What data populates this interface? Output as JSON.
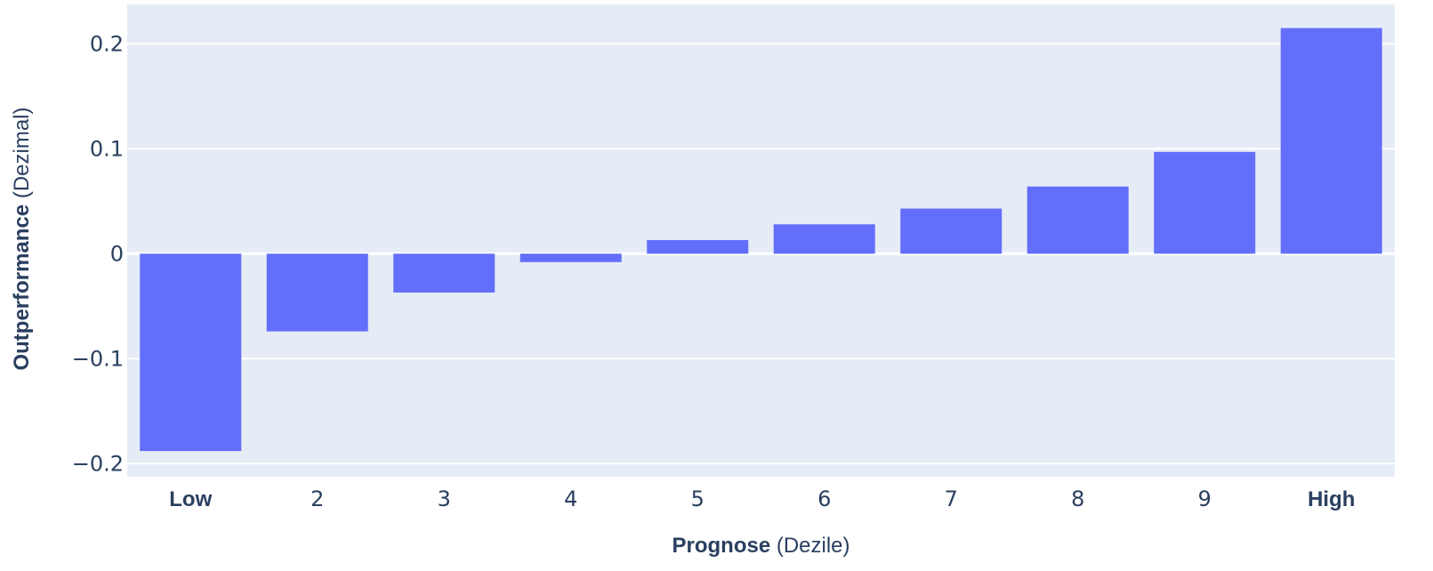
{
  "chart_data": {
    "type": "bar",
    "categories": [
      "Low",
      "2",
      "3",
      "4",
      "5",
      "6",
      "7",
      "8",
      "9",
      "High"
    ],
    "bold_categories": [
      "Low",
      "High"
    ],
    "values": [
      -0.188,
      -0.074,
      -0.037,
      -0.008,
      0.013,
      0.028,
      0.043,
      0.064,
      0.097,
      0.215
    ],
    "xlabel": {
      "bold": "Prognose",
      "normal": " (Dezile)"
    },
    "ylabel": {
      "bold": "Outperformance",
      "normal": " (Dezimal)"
    },
    "ylim": [
      -0.2125,
      0.2375
    ],
    "yticks": [
      {
        "value": 0.2,
        "label": "0.2"
      },
      {
        "value": 0.1,
        "label": "0.1"
      },
      {
        "value": 0,
        "label": "0"
      },
      {
        "value": -0.1,
        "label": "−0.1"
      },
      {
        "value": -0.2,
        "label": "−0.2"
      }
    ],
    "grid": true,
    "colors": {
      "bar": "#636efa",
      "plot_bg": "#e5ecf6",
      "grid": "#ffffff",
      "text": "#2a3f5f"
    }
  }
}
